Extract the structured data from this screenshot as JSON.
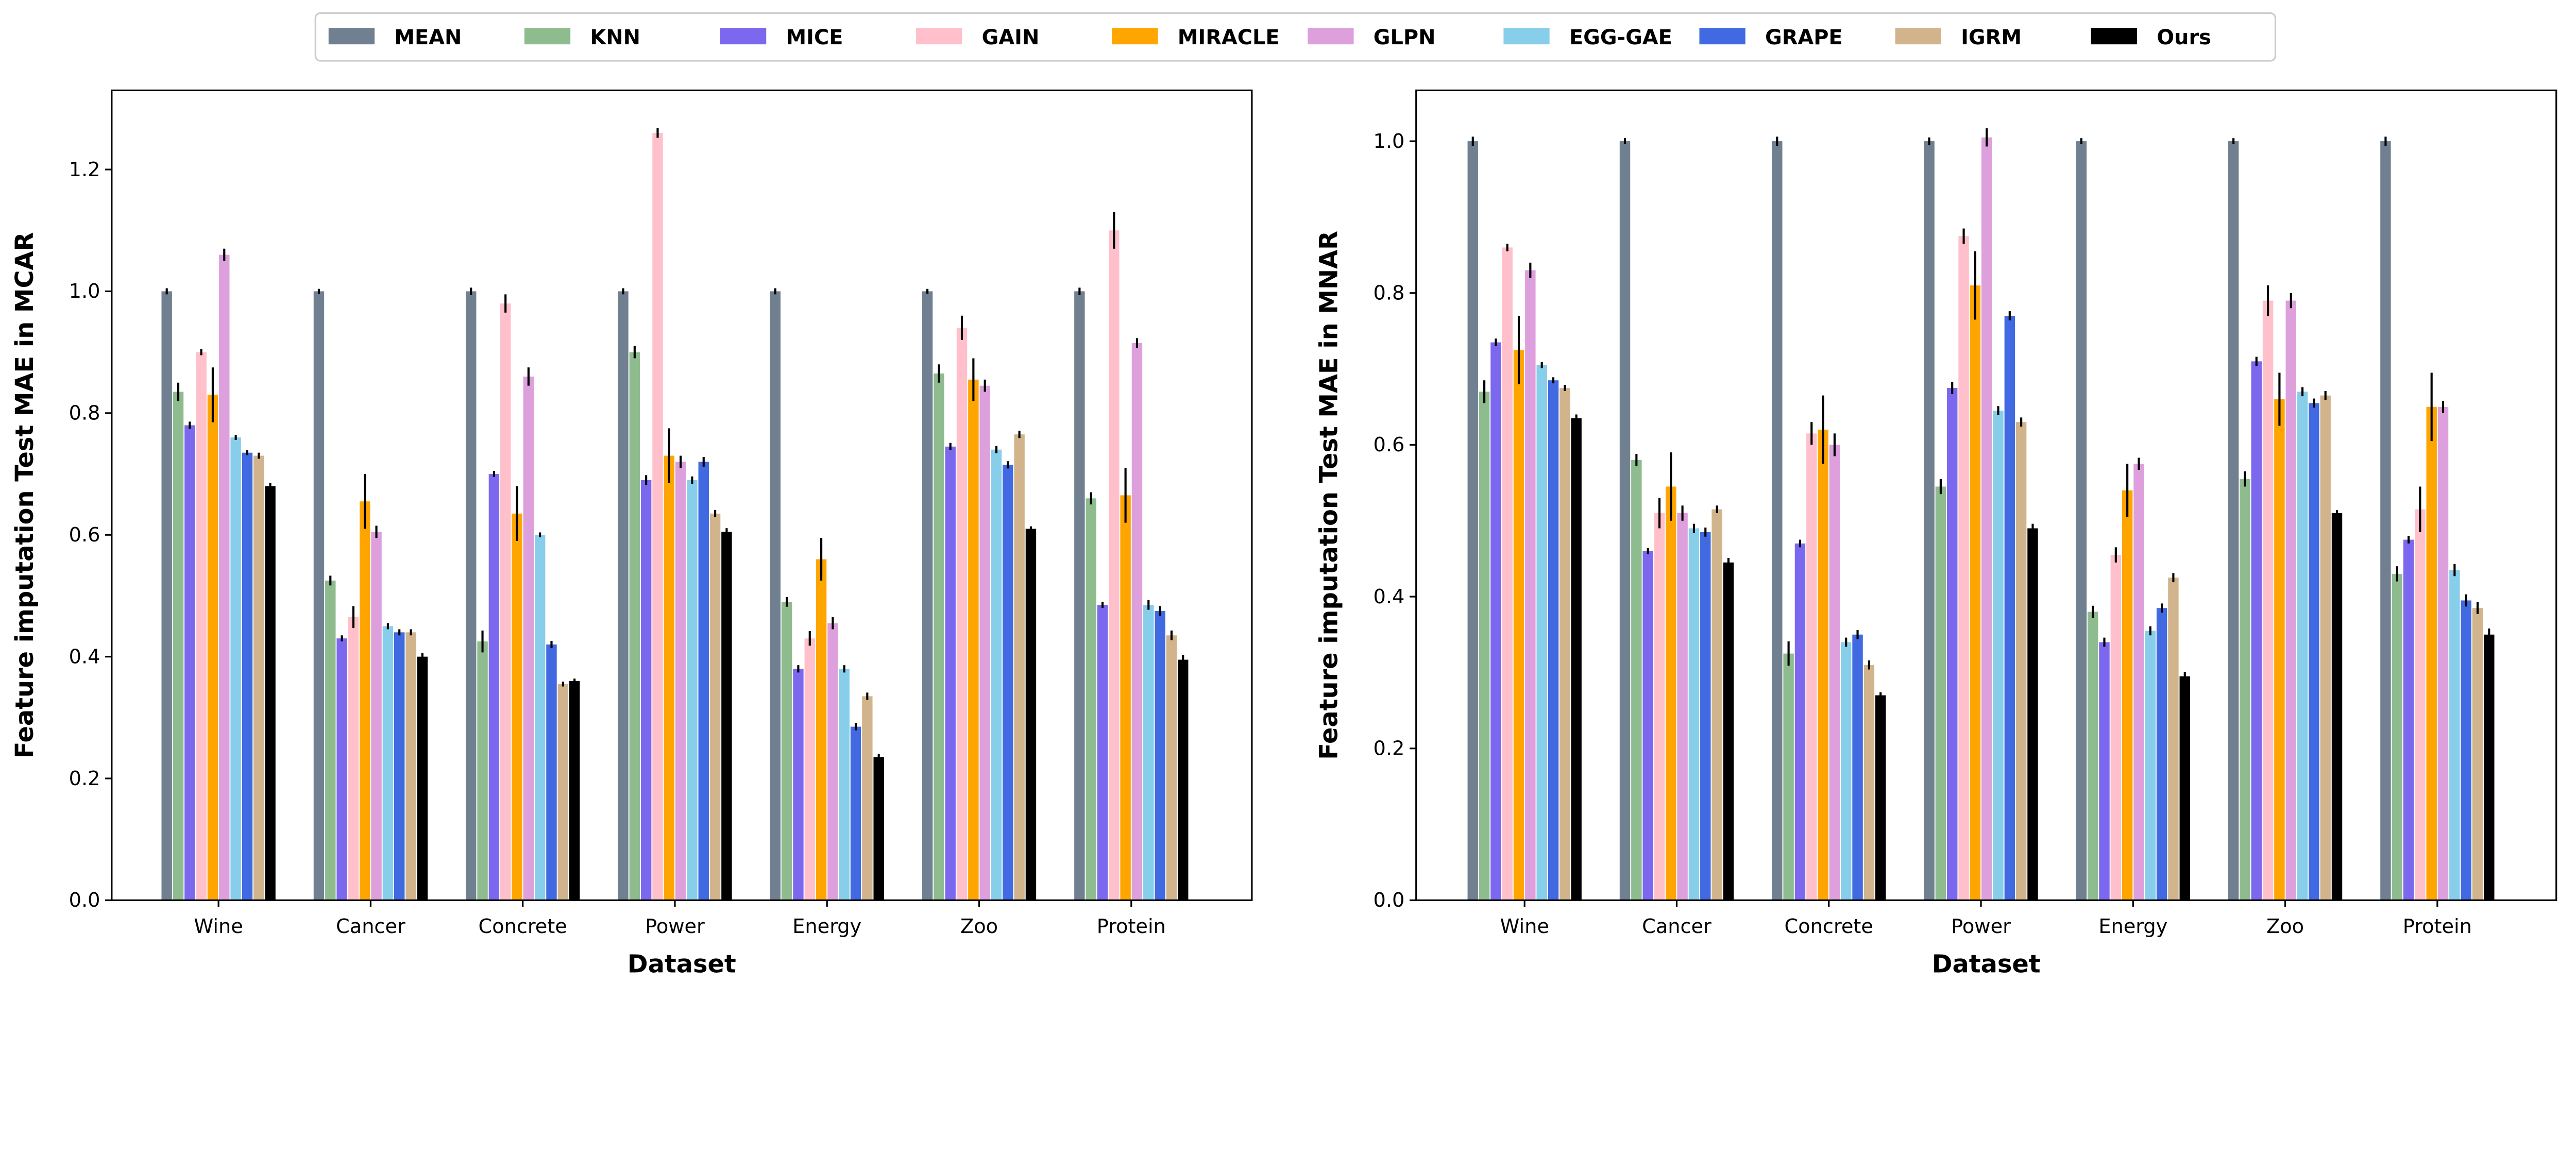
{
  "legend": {
    "placement": "top-center",
    "entries": [
      {
        "name": "MEAN",
        "color": "#708090"
      },
      {
        "name": "KNN",
        "color": "#8fbc8f"
      },
      {
        "name": "MICE",
        "color": "#7b68ee"
      },
      {
        "name": "GAIN",
        "color": "#ffc0cb"
      },
      {
        "name": "MIRACLE",
        "color": "#ffa500"
      },
      {
        "name": "GLPN",
        "color": "#dda0dd"
      },
      {
        "name": "EGG-GAE",
        "color": "#87ceeb"
      },
      {
        "name": "GRAPE",
        "color": "#4169e1"
      },
      {
        "name": "IGRM",
        "color": "#d2b48c"
      },
      {
        "name": "Ours",
        "color": "#000000"
      }
    ]
  },
  "chart_data": [
    {
      "type": "bar",
      "title": "",
      "xlabel": "Dataset",
      "ylabel": "Feature imputation Test MAE in MCAR",
      "ylim": [
        0,
        1.33
      ],
      "yticks": [
        0.0,
        0.2,
        0.4,
        0.6,
        0.8,
        1.0,
        1.2
      ],
      "ytick_labels": [
        "0.0",
        "0.2",
        "0.4",
        "0.6",
        "0.8",
        "1.0",
        "1.2"
      ],
      "grid": false,
      "categories": [
        "Wine",
        "Cancer",
        "Concrete",
        "Power",
        "Energy",
        "Zoo",
        "Protein"
      ],
      "series": [
        {
          "name": "MEAN",
          "values": [
            1.0,
            1.0,
            1.0,
            1.0,
            1.0,
            1.0,
            1.0
          ],
          "errors": [
            0.005,
            0.004,
            0.006,
            0.005,
            0.005,
            0.004,
            0.006
          ]
        },
        {
          "name": "KNN",
          "values": [
            0.835,
            0.525,
            0.425,
            0.9,
            0.49,
            0.865,
            0.66
          ],
          "errors": [
            0.015,
            0.008,
            0.018,
            0.01,
            0.008,
            0.015,
            0.01
          ]
        },
        {
          "name": "MICE",
          "values": [
            0.78,
            0.43,
            0.7,
            0.69,
            0.38,
            0.745,
            0.485
          ],
          "errors": [
            0.006,
            0.005,
            0.005,
            0.008,
            0.006,
            0.006,
            0.005
          ]
        },
        {
          "name": "GAIN",
          "values": [
            0.9,
            0.465,
            0.98,
            1.26,
            0.43,
            0.94,
            1.1
          ],
          "errors": [
            0.005,
            0.018,
            0.015,
            0.008,
            0.012,
            0.02,
            0.03
          ]
        },
        {
          "name": "MIRACLE",
          "values": [
            0.83,
            0.655,
            0.635,
            0.73,
            0.56,
            0.855,
            0.665
          ],
          "errors": [
            0.045,
            0.045,
            0.045,
            0.045,
            0.035,
            0.035,
            0.045
          ]
        },
        {
          "name": "GLPN",
          "values": [
            1.06,
            0.605,
            0.86,
            0.72,
            0.455,
            0.845,
            0.915
          ],
          "errors": [
            0.01,
            0.01,
            0.015,
            0.01,
            0.01,
            0.01,
            0.008
          ]
        },
        {
          "name": "EGG-GAE",
          "values": [
            0.76,
            0.45,
            0.6,
            0.69,
            0.38,
            0.74,
            0.485
          ],
          "errors": [
            0.004,
            0.005,
            0.004,
            0.006,
            0.006,
            0.006,
            0.008
          ]
        },
        {
          "name": "GRAPE",
          "values": [
            0.735,
            0.44,
            0.42,
            0.72,
            0.285,
            0.715,
            0.475
          ],
          "errors": [
            0.004,
            0.005,
            0.006,
            0.008,
            0.006,
            0.006,
            0.008
          ]
        },
        {
          "name": "IGRM",
          "values": [
            0.73,
            0.44,
            0.355,
            0.635,
            0.335,
            0.765,
            0.435
          ],
          "errors": [
            0.005,
            0.005,
            0.004,
            0.006,
            0.006,
            0.006,
            0.008
          ]
        },
        {
          "name": "Ours",
          "values": [
            0.68,
            0.4,
            0.36,
            0.605,
            0.235,
            0.61,
            0.395
          ],
          "errors": [
            0.005,
            0.006,
            0.004,
            0.006,
            0.005,
            0.004,
            0.008
          ]
        }
      ]
    },
    {
      "type": "bar",
      "title": "",
      "xlabel": "Dataset",
      "ylabel": "Feature imputation Test MAE in MNAR",
      "ylim": [
        0,
        1.067
      ],
      "yticks": [
        0.0,
        0.2,
        0.4,
        0.6,
        0.8,
        1.0
      ],
      "ytick_labels": [
        "0.0",
        "0.2",
        "0.4",
        "0.6",
        "0.8",
        "1.0"
      ],
      "grid": false,
      "categories": [
        "Wine",
        "Cancer",
        "Concrete",
        "Power",
        "Energy",
        "Zoo",
        "Protein"
      ],
      "series": [
        {
          "name": "MEAN",
          "values": [
            1.0,
            1.0,
            1.0,
            1.0,
            1.0,
            1.0,
            1.0
          ],
          "errors": [
            0.006,
            0.004,
            0.006,
            0.005,
            0.004,
            0.004,
            0.006
          ]
        },
        {
          "name": "KNN",
          "values": [
            0.67,
            0.58,
            0.325,
            0.545,
            0.38,
            0.555,
            0.43
          ],
          "errors": [
            0.015,
            0.008,
            0.016,
            0.01,
            0.008,
            0.01,
            0.01
          ]
        },
        {
          "name": "MICE",
          "values": [
            0.735,
            0.46,
            0.47,
            0.675,
            0.34,
            0.71,
            0.475
          ],
          "errors": [
            0.005,
            0.004,
            0.005,
            0.008,
            0.006,
            0.006,
            0.005
          ]
        },
        {
          "name": "GAIN",
          "values": [
            0.86,
            0.51,
            0.615,
            0.875,
            0.455,
            0.79,
            0.515
          ],
          "errors": [
            0.005,
            0.02,
            0.015,
            0.01,
            0.01,
            0.02,
            0.03
          ]
        },
        {
          "name": "MIRACLE",
          "values": [
            0.725,
            0.545,
            0.62,
            0.81,
            0.54,
            0.66,
            0.65
          ],
          "errors": [
            0.045,
            0.045,
            0.045,
            0.045,
            0.035,
            0.035,
            0.045
          ]
        },
        {
          "name": "GLPN",
          "values": [
            0.83,
            0.51,
            0.6,
            1.005,
            0.575,
            0.79,
            0.65
          ],
          "errors": [
            0.01,
            0.01,
            0.015,
            0.012,
            0.008,
            0.01,
            0.008
          ]
        },
        {
          "name": "EGG-GAE",
          "values": [
            0.705,
            0.49,
            0.34,
            0.645,
            0.355,
            0.67,
            0.435
          ],
          "errors": [
            0.004,
            0.006,
            0.006,
            0.006,
            0.006,
            0.006,
            0.008
          ]
        },
        {
          "name": "GRAPE",
          "values": [
            0.685,
            0.485,
            0.35,
            0.77,
            0.385,
            0.655,
            0.395
          ],
          "errors": [
            0.004,
            0.006,
            0.006,
            0.006,
            0.006,
            0.006,
            0.008
          ]
        },
        {
          "name": "IGRM",
          "values": [
            0.675,
            0.515,
            0.31,
            0.63,
            0.425,
            0.665,
            0.385
          ],
          "errors": [
            0.004,
            0.005,
            0.006,
            0.006,
            0.006,
            0.006,
            0.008
          ]
        },
        {
          "name": "Ours",
          "values": [
            0.635,
            0.445,
            0.27,
            0.49,
            0.295,
            0.51,
            0.35
          ],
          "errors": [
            0.005,
            0.006,
            0.004,
            0.006,
            0.006,
            0.004,
            0.008
          ]
        }
      ]
    }
  ]
}
